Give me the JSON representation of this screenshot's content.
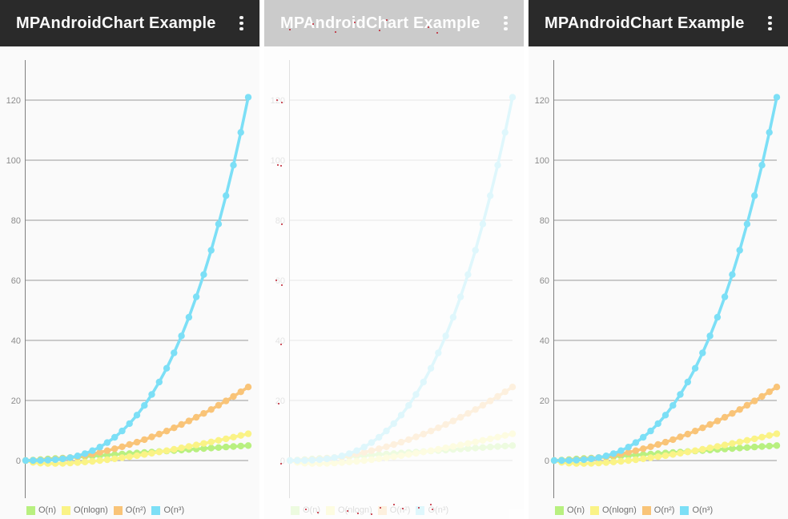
{
  "app": {
    "title": "MPAndroidChart Example",
    "overflow_menu": "overflow-menu"
  },
  "colors": {
    "appbar_bg": "#2a2a2a",
    "appbar_text": "#fafafa",
    "chart_bg": "#fafafa",
    "grid_line": "#9b9b9b",
    "axis_line": "#7f7f7f",
    "axis_label": "#8c8c8c",
    "legend_text": "#6f6f6f",
    "diff_mark": "#be1e2d"
  },
  "panels": {
    "left": {
      "state": "normal"
    },
    "middle": {
      "state": "faded-diff-overlay"
    },
    "right": {
      "state": "normal"
    }
  },
  "chart_data": {
    "type": "line",
    "title": "",
    "xlabel": "",
    "ylabel": "",
    "grid": true,
    "markers": "circle",
    "legend_position": "bottom-left",
    "y_ticks": [
      0,
      20,
      40,
      60,
      80,
      100,
      120
    ],
    "y_range": [
      -12.5,
      133.3
    ],
    "x": [
      0,
      0.1,
      0.2,
      0.3,
      0.4,
      0.5,
      0.6,
      0.7,
      0.8,
      0.9,
      1,
      1.1,
      1.2,
      1.3,
      1.4,
      1.5,
      1.6,
      1.7,
      1.8,
      1.9,
      2,
      2.1,
      2.2,
      2.3,
      2.4,
      2.5,
      2.6,
      2.7,
      2.8,
      2.9,
      3
    ],
    "series": [
      {
        "name": "O(n)",
        "color": "#b8f080",
        "values": [
          0,
          0.17,
          0.33,
          0.5,
          0.67,
          0.83,
          1,
          1.17,
          1.33,
          1.5,
          1.67,
          1.83,
          2,
          2.17,
          2.33,
          2.5,
          2.67,
          2.83,
          3,
          3.17,
          3.33,
          3.5,
          3.67,
          3.83,
          4,
          4.17,
          4.33,
          4.5,
          4.67,
          4.83,
          5
        ]
      },
      {
        "name": "O(nlogn)",
        "color": "#faf386",
        "values": [
          0,
          -0.62,
          -0.87,
          -0.98,
          -0.99,
          -0.94,
          -0.83,
          -0.67,
          -0.48,
          -0.26,
          0,
          0.28,
          0.59,
          0.92,
          1.27,
          1.64,
          2.03,
          2.44,
          2.86,
          3.29,
          3.74,
          4.21,
          4.68,
          5.17,
          5.67,
          6.19,
          6.71,
          7.24,
          7.78,
          8.34,
          8.9
        ]
      },
      {
        "name": "O(n²)",
        "color": "#f9c478",
        "values": [
          0,
          0.03,
          0.11,
          0.24,
          0.44,
          0.68,
          0.98,
          1.33,
          1.74,
          2.2,
          2.72,
          3.29,
          3.92,
          4.6,
          5.33,
          6.12,
          6.96,
          7.86,
          8.81,
          9.82,
          10.88,
          12,
          13.16,
          14.39,
          15.67,
          17,
          18.39,
          19.83,
          21.33,
          22.88,
          24.48
        ]
      },
      {
        "name": "O(n³)",
        "color": "#7cdff6",
        "values": [
          0,
          0,
          0.04,
          0.12,
          0.29,
          0.56,
          0.97,
          1.54,
          2.29,
          3.27,
          4.48,
          5.96,
          7.74,
          9.84,
          12.29,
          15.12,
          18.35,
          22.01,
          26.13,
          30.73,
          35.84,
          41.49,
          47.7,
          54.51,
          61.93,
          70,
          78.74,
          88.18,
          98.34,
          109.26,
          120.96
        ]
      }
    ]
  },
  "diff": {
    "marks": [
      [
        31,
        36
      ],
      [
        60,
        29
      ],
      [
        88,
        39
      ],
      [
        112,
        27
      ],
      [
        143,
        37
      ],
      [
        152,
        24
      ],
      [
        204,
        33
      ],
      [
        215,
        40
      ],
      [
        15,
        124
      ],
      [
        21,
        127
      ],
      [
        16,
        205
      ],
      [
        20,
        206
      ],
      [
        21,
        279
      ],
      [
        14,
        349
      ],
      [
        21,
        355
      ],
      [
        20,
        429
      ],
      [
        17,
        503
      ],
      [
        20,
        578
      ],
      [
        51,
        635
      ],
      [
        66,
        639
      ],
      [
        103,
        637
      ],
      [
        116,
        640
      ],
      [
        133,
        641
      ],
      [
        144,
        633
      ],
      [
        161,
        629
      ],
      [
        172,
        634
      ],
      [
        192,
        633
      ],
      [
        207,
        629
      ],
      [
        209,
        635
      ]
    ]
  }
}
